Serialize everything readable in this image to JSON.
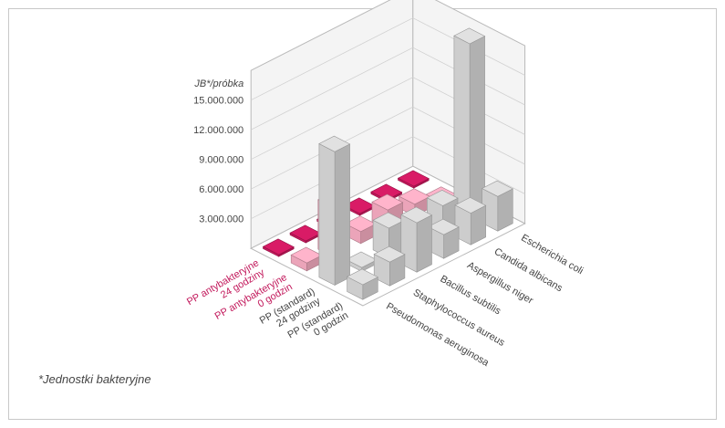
{
  "chart_data": {
    "type": "bar",
    "ylabel": "JB*/próbka",
    "y_ticks": [
      "3.000.000",
      "6.000.000",
      "9.000.000",
      "12.000.000",
      "15.000.000"
    ],
    "ylim": [
      0,
      18000000
    ],
    "rows": [
      {
        "label": [
          "PP (standard)",
          "0 godzin"
        ],
        "color": "#c9c9c9",
        "label_color": "#444444"
      },
      {
        "label": [
          "PP (standard)",
          "24 godziny"
        ],
        "color": "#c9c9c9",
        "label_color": "#444444"
      },
      {
        "label": [
          "PP antybakteryjne",
          "0 godzin"
        ],
        "color": "#e6a1b5",
        "label_color": "#c2185b"
      },
      {
        "label": [
          "PP antybakteryjne",
          "24 godziny"
        ],
        "color": "#c2185b",
        "label_color": "#c2185b"
      }
    ],
    "categories": [
      "Pseudomonas aeruginosa",
      "Staphylococcus aureus",
      "Bacillus subtilis",
      "Aspergillus niger",
      "Candida albicans",
      "Escherichia coli"
    ],
    "series": [
      {
        "name": "PP (standard) 0 godzin",
        "values": [
          1500000,
          2400000,
          5000000,
          2400000,
          3200000,
          3500000
        ]
      },
      {
        "name": "PP (standard) 24 godziny",
        "values": [
          13500000,
          400000,
          3000000,
          800000,
          2500000,
          17500000
        ]
      },
      {
        "name": "PP antybakteryjne 0 godzin",
        "values": [
          800000,
          5000000,
          1200000,
          2000000,
          1200000,
          0
        ]
      },
      {
        "name": "PP antybakteryjne 24 godziny",
        "values": [
          200000,
          200000,
          200000,
          200000,
          200000,
          200000
        ]
      }
    ]
  },
  "footnote": "*Jednostki bakteryjne"
}
